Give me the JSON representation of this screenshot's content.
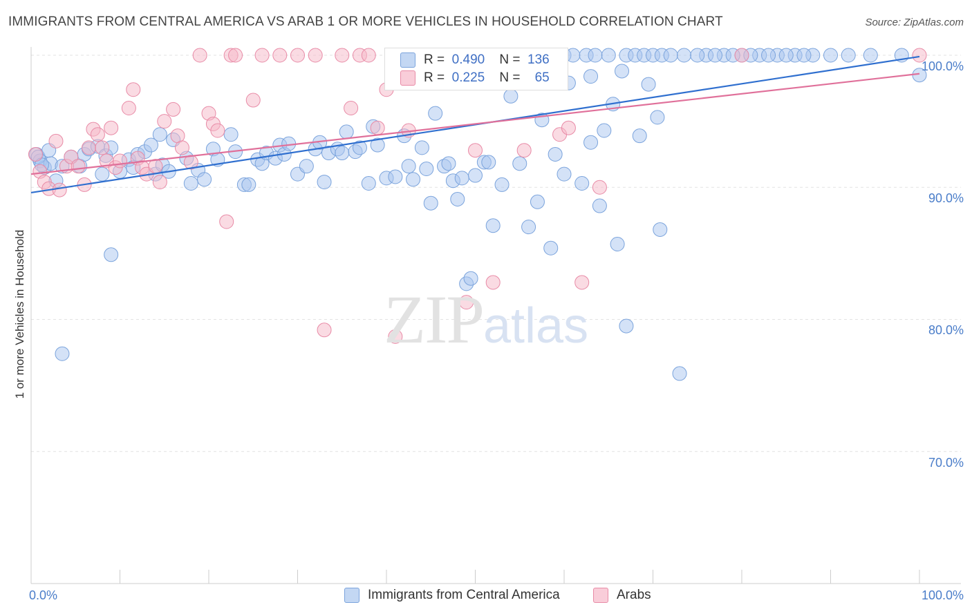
{
  "title": "IMMIGRANTS FROM CENTRAL AMERICA VS ARAB 1 OR MORE VEHICLES IN HOUSEHOLD CORRELATION CHART",
  "source": "Source: ZipAtlas.com",
  "watermark": {
    "zip": "ZIP",
    "atlas": "atlas"
  },
  "legend_top": {
    "rows": [
      {
        "r_label": "R =",
        "r_value": "0.490",
        "n_label": "N =",
        "n_value": "136",
        "color": "#a9c6ef"
      },
      {
        "r_label": "R =",
        "r_value": "0.225",
        "n_label": "N =",
        "n_value": "65",
        "color": "#f6b8c8"
      }
    ]
  },
  "chart_data": {
    "type": "scatter",
    "title": "IMMIGRANTS FROM CENTRAL AMERICA VS ARAB 1 OR MORE VEHICLES IN HOUSEHOLD CORRELATION CHART",
    "xlabel": "",
    "ylabel": "1 or more Vehicles in Household",
    "xlim": [
      0,
      100
    ],
    "ylim": [
      60,
      100
    ],
    "x_tick_labels": [
      "0.0%",
      "100.0%"
    ],
    "y_ticks": [
      70,
      80,
      90,
      100
    ],
    "y_tick_labels": [
      "70.0%",
      "80.0%",
      "90.0%",
      "100.0%"
    ],
    "grid": true,
    "legend_placement": "bottom",
    "series": [
      {
        "name": "Immigrants from Central America",
        "color": "#a9c6ef",
        "edge": "#7aa3dc",
        "trend": {
          "x": [
            0,
            100
          ],
          "y": [
            89.6,
            99.9
          ],
          "color": "#2f6fcf"
        },
        "points": [
          [
            0.6,
            92.5
          ],
          [
            1.0,
            92.0
          ],
          [
            1.5,
            91.5
          ],
          [
            2.2,
            91.8
          ],
          [
            2.8,
            90.5
          ],
          [
            3.5,
            91.6
          ],
          [
            4.5,
            92.3
          ],
          [
            5.5,
            91.6
          ],
          [
            6.0,
            92.5
          ],
          [
            6.5,
            92.9
          ],
          [
            7.5,
            93.1
          ],
          [
            8.0,
            91.0
          ],
          [
            8.4,
            92.4
          ],
          [
            9.0,
            93.0
          ],
          [
            10.0,
            91.2
          ],
          [
            11.0,
            92.1
          ],
          [
            11.5,
            91.5
          ],
          [
            12.0,
            92.5
          ],
          [
            12.8,
            92.7
          ],
          [
            13.5,
            93.2
          ],
          [
            14.0,
            91.0
          ],
          [
            14.5,
            94.0
          ],
          [
            14.8,
            91.7
          ],
          [
            15.5,
            91.2
          ],
          [
            16.0,
            93.6
          ],
          [
            17.5,
            92.2
          ],
          [
            18.0,
            90.3
          ],
          [
            18.8,
            91.3
          ],
          [
            19.5,
            90.6
          ],
          [
            20.5,
            92.9
          ],
          [
            21.0,
            92.1
          ],
          [
            22.5,
            94.0
          ],
          [
            23.0,
            92.7
          ],
          [
            24.0,
            90.2
          ],
          [
            24.5,
            90.2
          ],
          [
            25.5,
            92.1
          ],
          [
            26.0,
            91.8
          ],
          [
            26.5,
            92.6
          ],
          [
            27.5,
            92.2
          ],
          [
            28.0,
            93.2
          ],
          [
            28.5,
            92.5
          ],
          [
            29.0,
            93.3
          ],
          [
            30.0,
            91.0
          ],
          [
            31.0,
            91.6
          ],
          [
            32.0,
            92.9
          ],
          [
            32.5,
            93.4
          ],
          [
            33.0,
            90.4
          ],
          [
            33.5,
            92.6
          ],
          [
            34.5,
            92.9
          ],
          [
            35.0,
            92.6
          ],
          [
            35.5,
            94.2
          ],
          [
            36.5,
            92.7
          ],
          [
            37.0,
            93.0
          ],
          [
            38.0,
            90.3
          ],
          [
            38.5,
            94.6
          ],
          [
            39.0,
            93.2
          ],
          [
            40.0,
            90.7
          ],
          [
            41.0,
            90.8
          ],
          [
            42.0,
            93.9
          ],
          [
            42.5,
            91.6
          ],
          [
            43.0,
            90.6
          ],
          [
            44.0,
            93.0
          ],
          [
            44.5,
            91.4
          ],
          [
            45.0,
            88.8
          ],
          [
            45.5,
            95.6
          ],
          [
            46.5,
            91.6
          ],
          [
            47.0,
            91.8
          ],
          [
            47.5,
            90.5
          ],
          [
            48.0,
            89.1
          ],
          [
            48.5,
            90.7
          ],
          [
            49.0,
            82.7
          ],
          [
            49.5,
            83.1
          ],
          [
            50.0,
            90.9
          ],
          [
            51.0,
            91.9
          ],
          [
            51.5,
            91.9
          ],
          [
            52.0,
            87.1
          ],
          [
            53.0,
            90.2
          ],
          [
            54.0,
            96.9
          ],
          [
            55.0,
            91.8
          ],
          [
            56.0,
            87.0
          ],
          [
            57.0,
            88.9
          ],
          [
            57.5,
            95.1
          ],
          [
            58.5,
            85.4
          ],
          [
            59.0,
            92.5
          ],
          [
            60.0,
            91.0
          ],
          [
            62.0,
            90.3
          ],
          [
            63.0,
            93.4
          ],
          [
            64.0,
            88.6
          ],
          [
            64.5,
            94.3
          ],
          [
            65.5,
            96.3
          ],
          [
            66.0,
            85.7
          ],
          [
            67.0,
            79.5
          ],
          [
            68.5,
            93.9
          ],
          [
            70.5,
            95.3
          ],
          [
            70.8,
            86.8
          ],
          [
            73.0,
            75.9
          ],
          [
            76.0,
            100
          ],
          [
            78.0,
            100
          ],
          [
            80.0,
            100
          ],
          [
            82.0,
            100
          ],
          [
            84.0,
            100
          ],
          [
            86.0,
            100
          ],
          [
            88.0,
            100
          ],
          [
            90.0,
            100
          ],
          [
            92.0,
            100
          ],
          [
            94.5,
            100
          ],
          [
            98.0,
            100
          ],
          [
            100.0,
            98.5
          ],
          [
            44.0,
            100
          ],
          [
            46.0,
            100
          ],
          [
            48.0,
            100
          ],
          [
            50.0,
            100
          ],
          [
            52.0,
            100
          ],
          [
            54.0,
            100
          ],
          [
            56.0,
            100
          ],
          [
            58.0,
            100
          ],
          [
            60.0,
            100
          ],
          [
            61.0,
            100
          ],
          [
            62.5,
            100
          ],
          [
            63.5,
            100
          ],
          [
            65.0,
            100
          ],
          [
            67.0,
            100
          ],
          [
            68.0,
            100
          ],
          [
            69.0,
            100
          ],
          [
            70.0,
            100
          ],
          [
            71.0,
            100
          ],
          [
            72.0,
            100
          ],
          [
            73.5,
            100
          ],
          [
            75.0,
            100
          ],
          [
            77.0,
            100
          ],
          [
            79.0,
            100
          ],
          [
            81.0,
            100
          ],
          [
            83.0,
            100
          ],
          [
            85.0,
            100
          ],
          [
            87.0,
            100
          ],
          [
            56.5,
            98.1
          ],
          [
            58.0,
            98.8
          ],
          [
            60.5,
            97.9
          ],
          [
            63.0,
            98.4
          ],
          [
            66.5,
            98.8
          ],
          [
            69.5,
            97.8
          ],
          [
            3.5,
            77.4
          ],
          [
            9.0,
            84.9
          ],
          [
            0.8,
            92.3
          ],
          [
            1.2,
            91.7
          ],
          [
            2.0,
            92.8
          ]
        ]
      },
      {
        "name": "Arabs",
        "color": "#f6b8c8",
        "edge": "#e88aa6",
        "trend": {
          "x": [
            0,
            100
          ],
          "y": [
            91.0,
            98.6
          ],
          "color": "#e0709a"
        },
        "points": [
          [
            0.5,
            92.5
          ],
          [
            1.0,
            91.2
          ],
          [
            1.5,
            90.4
          ],
          [
            2.0,
            89.9
          ],
          [
            2.8,
            93.5
          ],
          [
            3.2,
            89.8
          ],
          [
            4.0,
            91.6
          ],
          [
            4.5,
            92.3
          ],
          [
            5.3,
            91.6
          ],
          [
            6.0,
            90.2
          ],
          [
            6.5,
            93.0
          ],
          [
            7.0,
            94.4
          ],
          [
            7.5,
            94.0
          ],
          [
            8.0,
            93.0
          ],
          [
            8.5,
            92.0
          ],
          [
            9.0,
            94.5
          ],
          [
            9.5,
            91.5
          ],
          [
            10.0,
            92.0
          ],
          [
            11.0,
            96.0
          ],
          [
            11.5,
            97.4
          ],
          [
            12.0,
            92.2
          ],
          [
            12.5,
            91.5
          ],
          [
            13.0,
            91.0
          ],
          [
            14.0,
            91.6
          ],
          [
            14.5,
            90.4
          ],
          [
            15.0,
            95.0
          ],
          [
            16.0,
            95.9
          ],
          [
            16.5,
            93.9
          ],
          [
            17.0,
            93.0
          ],
          [
            18.0,
            91.9
          ],
          [
            19.0,
            100
          ],
          [
            20.0,
            95.6
          ],
          [
            20.5,
            94.8
          ],
          [
            21.0,
            94.3
          ],
          [
            22.0,
            87.4
          ],
          [
            22.5,
            100
          ],
          [
            23.0,
            100
          ],
          [
            25.0,
            96.6
          ],
          [
            26.0,
            100
          ],
          [
            28.0,
            100
          ],
          [
            30.0,
            100
          ],
          [
            32.0,
            100
          ],
          [
            33.0,
            79.2
          ],
          [
            35.0,
            100
          ],
          [
            36.0,
            96.0
          ],
          [
            37.0,
            100
          ],
          [
            38.0,
            100
          ],
          [
            39.0,
            94.5
          ],
          [
            40.0,
            97.4
          ],
          [
            41.0,
            78.7
          ],
          [
            42.5,
            94.3
          ],
          [
            44.0,
            100
          ],
          [
            45.5,
            100
          ],
          [
            47.0,
            98.9
          ],
          [
            49.0,
            81.3
          ],
          [
            50.0,
            92.8
          ],
          [
            52.0,
            82.8
          ],
          [
            54.0,
            100
          ],
          [
            55.5,
            92.8
          ],
          [
            59.5,
            94.0
          ],
          [
            60.5,
            94.5
          ],
          [
            62.0,
            82.8
          ],
          [
            64.0,
            90.0
          ],
          [
            80.0,
            100
          ],
          [
            100.0,
            100
          ]
        ]
      }
    ]
  },
  "axis": {
    "ylabel": "1 or more Vehicles in Household",
    "x_left": "0.0%",
    "x_right": "100.0%"
  },
  "legend_bottom": {
    "items": [
      {
        "label": "Immigrants from Central America",
        "color": "#a9c6ef"
      },
      {
        "label": "Arabs",
        "color": "#f6b8c8"
      }
    ]
  }
}
